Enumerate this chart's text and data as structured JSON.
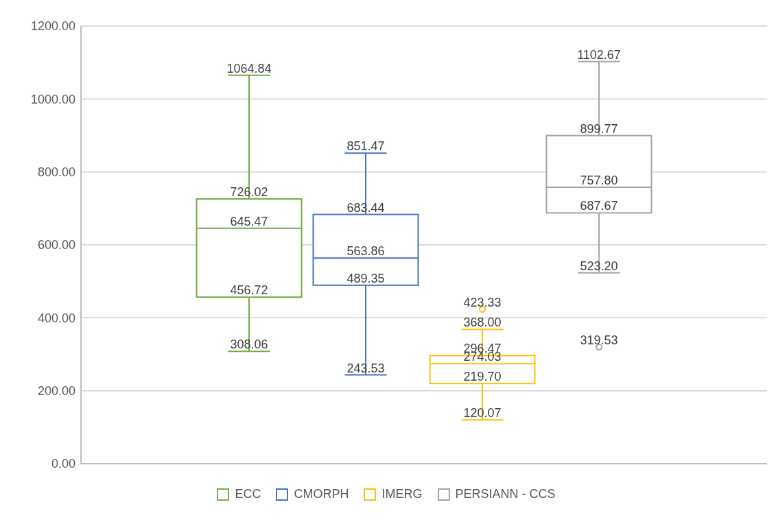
{
  "chart_data": {
    "type": "box",
    "categories": [
      null
    ],
    "ylim": [
      0,
      1200
    ],
    "yticks": [
      {
        "value": 0,
        "label": "0.00"
      },
      {
        "value": 200,
        "label": "200.00"
      },
      {
        "value": 400,
        "label": "400.00"
      },
      {
        "value": 600,
        "label": "600.00"
      },
      {
        "value": 800,
        "label": "800.00"
      },
      {
        "value": 1000,
        "label": "1000.00"
      },
      {
        "value": 1200,
        "label": "1200.00"
      }
    ],
    "grid": "y",
    "legend": "bottom",
    "series": [
      {
        "name": "ECC",
        "color": "#70ad47",
        "boxes": [
          {
            "low": 308.06,
            "q1": 456.72,
            "median": 645.47,
            "q3": 726.02,
            "high": 1064.84
          }
        ],
        "value_labels": [
          [
            "308.06",
            "456.72",
            "645.47",
            "726.02",
            "1064.84"
          ]
        ]
      },
      {
        "name": "CMORPH",
        "color": "#4472c4",
        "boxes": [
          {
            "low": 243.53,
            "q1": 489.35,
            "median": 563.86,
            "q3": 683.44,
            "high": 851.47
          }
        ],
        "value_labels": [
          [
            "243.53",
            "489.35",
            "563.86",
            "683.44",
            "851.47"
          ]
        ]
      },
      {
        "name": "IMERG",
        "color": "#ffc000",
        "boxes": [
          {
            "low": 120.07,
            "q1": 219.7,
            "median": 274.03,
            "q3": 296.47,
            "high": 368.0,
            "outliers": [
              423.33
            ]
          }
        ],
        "value_labels": [
          [
            "120.07",
            "219.70",
            "274.03",
            "296.47",
            "368.00",
            "423.33"
          ]
        ]
      },
      {
        "name": "PERSIANN - CCS",
        "color": "#a5a5a5",
        "boxes": [
          {
            "low": 523.2,
            "q1": 687.67,
            "median": 757.8,
            "q3": 899.77,
            "high": 1102.67,
            "outliers": [
              319.53
            ]
          }
        ],
        "value_labels": [
          [
            "523.20",
            "687.67",
            "757.80",
            "899.77",
            "1102.67",
            "319.53"
          ]
        ]
      }
    ]
  }
}
